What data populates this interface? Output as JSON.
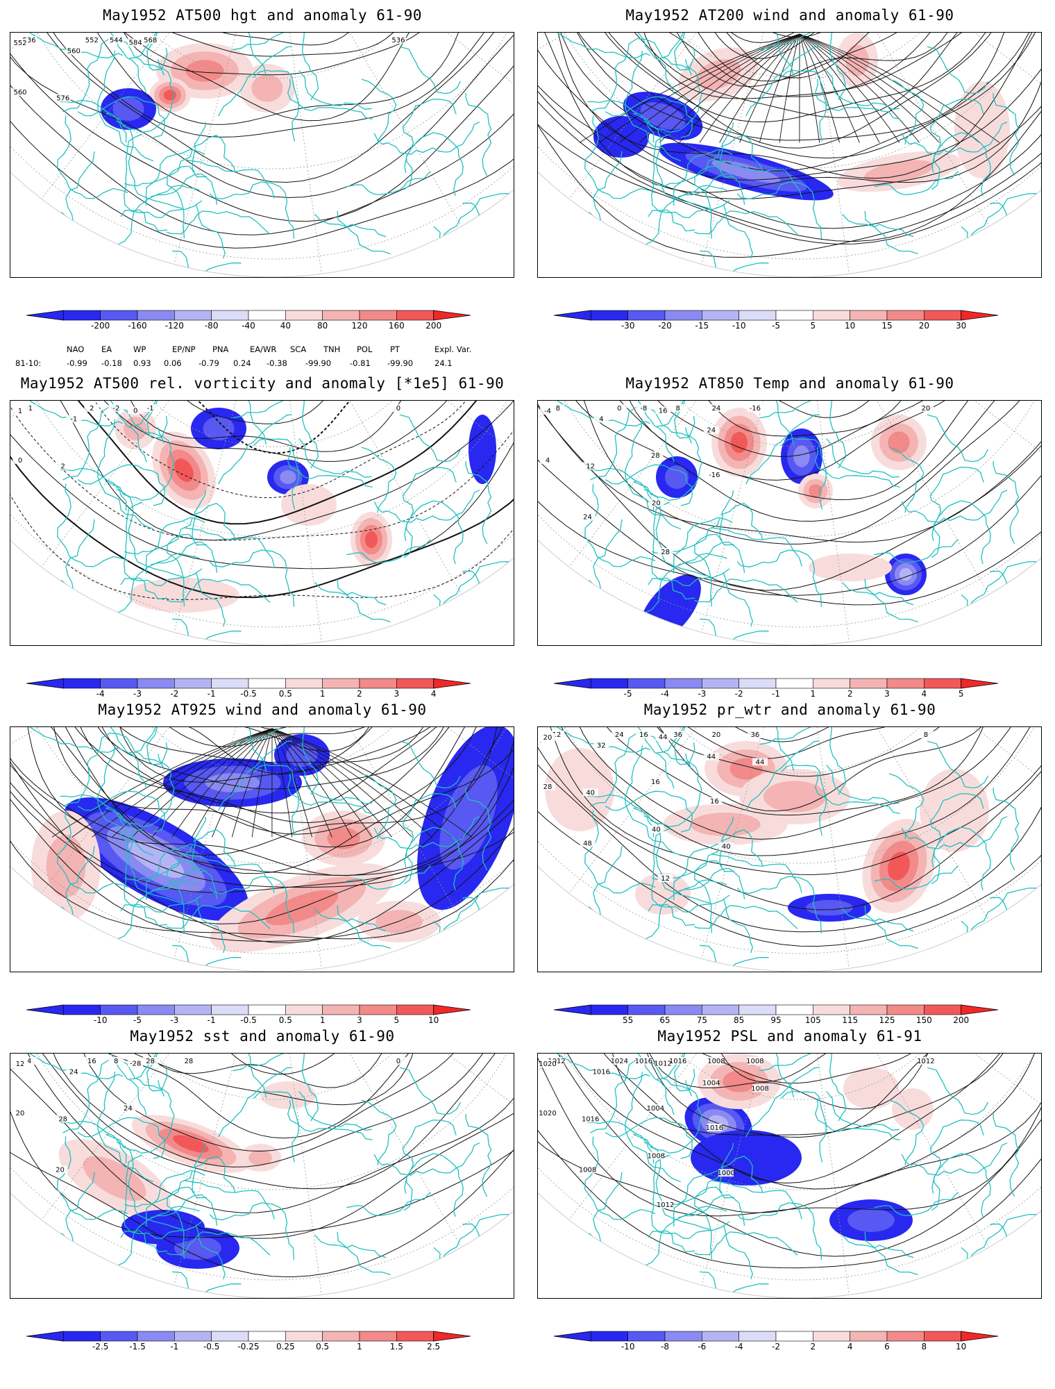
{
  "panels": [
    {
      "title": "May1952 AT500 hgt and anomaly 61-90",
      "ticks": [
        "-200",
        "-160",
        "-120",
        "-80",
        "-40",
        "40",
        "80",
        "120",
        "160",
        "200"
      ],
      "labels": [
        "536",
        "536",
        "544",
        "552",
        "552",
        "560",
        "560",
        "568",
        "576",
        "584"
      ]
    },
    {
      "title": "May1952 AT200 wind and anomaly 61-90",
      "ticks": [
        "-30",
        "-20",
        "-15",
        "-10",
        "-5",
        "5",
        "10",
        "15",
        "20",
        "30"
      ],
      "labels": []
    },
    {
      "title": "May1952 AT500 rel. vorticity and anomaly [*1e5] 61-90",
      "ticks": [
        "-4",
        "-3",
        "-2",
        "-1",
        "-0.5",
        "0.5",
        "1",
        "2",
        "3",
        "4"
      ],
      "labels": [
        "0",
        "-1",
        "-2",
        "1",
        "2",
        "0",
        "-1",
        "-1",
        "2",
        "0"
      ]
    },
    {
      "title": "May1952 AT850 Temp and anomaly 61-90",
      "ticks": [
        "-5",
        "-4",
        "-3",
        "-2",
        "-1",
        "1",
        "2",
        "3",
        "4",
        "5"
      ],
      "labels": [
        "20",
        "-8",
        "-8",
        "-4",
        "0",
        "4",
        "4",
        "8",
        "12",
        "16",
        "24",
        "28",
        "24",
        "20",
        "24",
        "28",
        "-16",
        "-16"
      ]
    },
    {
      "title": "May1952 AT925 wind and anomaly 61-90",
      "ticks": [
        "-10",
        "-5",
        "-3",
        "-1",
        "-0.5",
        "0.5",
        "1",
        "3",
        "5",
        "10"
      ],
      "labels": []
    },
    {
      "title": "May1952 pr_wtr and anomaly 61-90",
      "ticks": [
        "55",
        "65",
        "75",
        "85",
        "95",
        "105",
        "115",
        "125",
        "150",
        "200"
      ],
      "labels": [
        "8",
        "12",
        "16",
        "20",
        "24",
        "28",
        "32",
        "36",
        "40",
        "44",
        "48",
        "16",
        "20",
        "40",
        "44",
        "12",
        "16",
        "36",
        "40",
        "44"
      ]
    },
    {
      "title": "May1952 sst and anomaly 61-90",
      "ticks": [
        "-2.5",
        "-1.5",
        "-1",
        "-0.5",
        "-0.25",
        "0.25",
        "0.5",
        "1",
        "1.5",
        "2.5"
      ],
      "labels": [
        "0",
        "4",
        "8",
        "12",
        "16",
        "20",
        "24",
        "28",
        "28",
        "-28",
        "20",
        "24",
        "28"
      ]
    },
    {
      "title": "May1952 PSL and anomaly 61-91",
      "ticks": [
        "-10",
        "-8",
        "-6",
        "-4",
        "-2",
        "2",
        "4",
        "6",
        "8",
        "10"
      ],
      "labels": [
        "1012",
        "1012",
        "1016",
        "1020",
        "1024",
        "1020",
        "1016",
        "1016",
        "1016",
        "1012",
        "1008",
        "1004",
        "1008",
        "1008",
        "1004",
        "1012",
        "1016",
        "1008",
        "1000",
        "1008"
      ]
    }
  ],
  "indices": {
    "names": [
      "NAO",
      "EA",
      "WP",
      "EP/NP",
      "PNA",
      "EA/WR",
      "SCA",
      "TNH",
      "POL",
      "PT",
      "Expl. Var."
    ],
    "row_label": "81-10:",
    "values": [
      "-0.99",
      "-0.18",
      "0.93",
      "0.06",
      "-0.79",
      "0.24",
      "-0.38",
      "-99.90",
      "-0.81",
      "-99.90",
      "24.1"
    ]
  },
  "colors": {
    "blues": [
      "#2828f0",
      "#5858f2",
      "#8a8af2",
      "#b4b4f4",
      "#dcdcf8"
    ],
    "reds": [
      "#f8dcdc",
      "#f4b4b4",
      "#f28a8a",
      "#f25858",
      "#f02828"
    ],
    "coast": "#20c0c0"
  }
}
